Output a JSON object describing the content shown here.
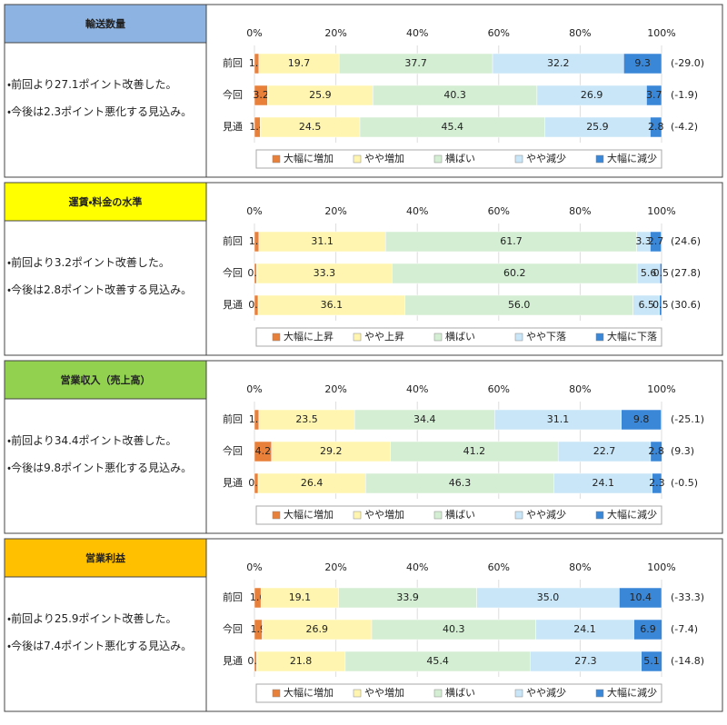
{
  "panels": [
    {
      "title": "輸送数量",
      "header_color": "#8db3e2",
      "notes": [
        "・前回より27.1ポイント改善した。",
        "・今後は2.3ポイント悪化する見込み。"
      ]
    },
    {
      "title": "運賃・料金の水準",
      "header_color": "#ffff00",
      "notes": [
        "・前回より3.2ポイント改善した。",
        "・今後は2.8ポイント改善する見込み。"
      ]
    },
    {
      "title": "営業収入（売上高）",
      "header_color": "#92d050",
      "notes": [
        "・前回より34.4ポイント改善した。",
        "・今後は9.8ポイント悪化する見込み。"
      ]
    },
    {
      "title": "営業利益",
      "header_color": "#ffc000",
      "notes": [
        "・前回より25.9ポイント改善した。",
        "・今後は7.4ポイント悪化する見込み。"
      ]
    }
  ],
  "chart_data": [
    {
      "type": "bar",
      "orientation": "horizontal",
      "stacked": true,
      "grid": true,
      "categories": [
        "前回",
        "今回",
        "見通"
      ],
      "row_labels": [
        "(-29.0)",
        "(-1.9)",
        "(-4.2)"
      ],
      "xlim": [
        0,
        100
      ],
      "xticks": [
        {
          "value": 0,
          "label": "0%"
        },
        {
          "value": 20,
          "label": "20%"
        },
        {
          "value": 40,
          "label": "40%"
        },
        {
          "value": 60,
          "label": "60%"
        },
        {
          "value": 80,
          "label": "80%"
        },
        {
          "value": 100,
          "label": "100%"
        }
      ],
      "series": [
        {
          "name": "大幅に増加",
          "color": "#e8803a",
          "values": [
            1.1,
            3.2,
            1.4
          ]
        },
        {
          "name": "やや増加",
          "color": "#fff5b0",
          "values": [
            19.7,
            25.9,
            24.5
          ]
        },
        {
          "name": "横ばい",
          "color": "#d3eed3",
          "values": [
            37.7,
            40.3,
            45.4
          ]
        },
        {
          "name": "やや減少",
          "color": "#c8e6f7",
          "values": [
            32.2,
            26.9,
            25.9
          ]
        },
        {
          "name": "大幅に減少",
          "color": "#3a87d8",
          "values": [
            9.3,
            3.7,
            2.8
          ]
        }
      ]
    },
    {
      "type": "bar",
      "orientation": "horizontal",
      "stacked": true,
      "grid": true,
      "categories": [
        "前回",
        "今回",
        "見通"
      ],
      "row_labels": [
        "(24.6)",
        "(27.8)",
        "(30.6)"
      ],
      "xlim": [
        0,
        100
      ],
      "xticks": [
        {
          "value": 0,
          "label": "0%"
        },
        {
          "value": 20,
          "label": "20%"
        },
        {
          "value": 40,
          "label": "40%"
        },
        {
          "value": 60,
          "label": "60%"
        },
        {
          "value": 80,
          "label": "80%"
        },
        {
          "value": 100,
          "label": "100%"
        }
      ],
      "series": [
        {
          "name": "大幅に上昇",
          "color": "#e8803a",
          "values": [
            1.1,
            0.5,
            0.9
          ]
        },
        {
          "name": "やや上昇",
          "color": "#fff5b0",
          "values": [
            31.1,
            33.3,
            36.1
          ]
        },
        {
          "name": "横ばい",
          "color": "#d3eed3",
          "values": [
            61.7,
            60.2,
            56.0
          ],
          "value_labels": [
            "61.7",
            "60.2",
            "56.0"
          ]
        },
        {
          "name": "やや下落",
          "color": "#c8e6f7",
          "values": [
            3.3,
            5.6,
            6.5
          ]
        },
        {
          "name": "大幅に下落",
          "color": "#3a87d8",
          "values": [
            2.7,
            0.5,
            0.5
          ]
        }
      ]
    },
    {
      "type": "bar",
      "orientation": "horizontal",
      "stacked": true,
      "grid": true,
      "categories": [
        "前回",
        "今回",
        "見通"
      ],
      "row_labels": [
        "(-25.1)",
        "(9.3)",
        "(-0.5)"
      ],
      "xlim": [
        0,
        100
      ],
      "xticks": [
        {
          "value": 0,
          "label": "0%"
        },
        {
          "value": 20,
          "label": "20%"
        },
        {
          "value": 40,
          "label": "40%"
        },
        {
          "value": 60,
          "label": "60%"
        },
        {
          "value": 80,
          "label": "80%"
        },
        {
          "value": 100,
          "label": "100%"
        }
      ],
      "series": [
        {
          "name": "大幅に増加",
          "color": "#e8803a",
          "values": [
            1.1,
            4.2,
            0.9
          ]
        },
        {
          "name": "やや増加",
          "color": "#fff5b0",
          "values": [
            23.5,
            29.2,
            26.4
          ]
        },
        {
          "name": "横ばい",
          "color": "#d3eed3",
          "values": [
            34.4,
            41.2,
            46.3
          ]
        },
        {
          "name": "やや減少",
          "color": "#c8e6f7",
          "values": [
            31.1,
            22.7,
            24.1
          ]
        },
        {
          "name": "大幅に減少",
          "color": "#3a87d8",
          "values": [
            9.8,
            2.8,
            2.3
          ]
        }
      ]
    },
    {
      "type": "bar",
      "orientation": "horizontal",
      "stacked": true,
      "grid": true,
      "categories": [
        "前回",
        "今回",
        "見通"
      ],
      "row_labels": [
        "(-33.3)",
        "(-7.4)",
        "(-14.8)"
      ],
      "xlim": [
        0,
        100
      ],
      "xticks": [
        {
          "value": 0,
          "label": "0%"
        },
        {
          "value": 20,
          "label": "20%"
        },
        {
          "value": 40,
          "label": "40%"
        },
        {
          "value": 60,
          "label": "60%"
        },
        {
          "value": 80,
          "label": "80%"
        },
        {
          "value": 100,
          "label": "100%"
        }
      ],
      "series": [
        {
          "name": "大幅に増加",
          "color": "#e8803a",
          "values": [
            1.6,
            1.9,
            0.5
          ]
        },
        {
          "name": "やや増加",
          "color": "#fff5b0",
          "values": [
            19.1,
            26.9,
            21.8
          ]
        },
        {
          "name": "横ばい",
          "color": "#d3eed3",
          "values": [
            33.9,
            40.3,
            45.4
          ]
        },
        {
          "name": "やや減少",
          "color": "#c8e6f7",
          "values": [
            35.0,
            24.1,
            27.3
          ],
          "value_labels": [
            "35.0",
            "24.1",
            "27.3"
          ]
        },
        {
          "name": "大幅に減少",
          "color": "#3a87d8",
          "values": [
            10.4,
            6.9,
            5.1
          ]
        }
      ]
    }
  ]
}
